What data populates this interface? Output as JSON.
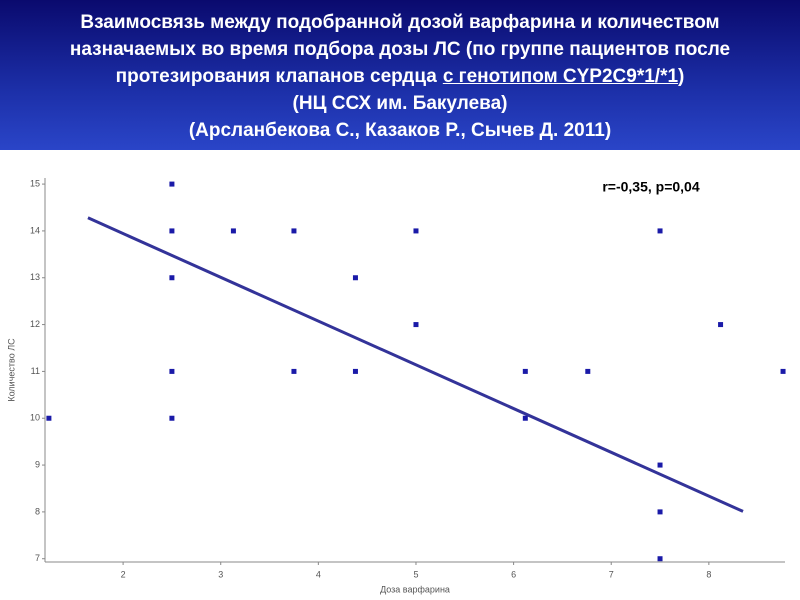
{
  "chart_data": {
    "type": "scatter",
    "title_lines": [
      "Взаимосвязь между подобранной дозой варфарина и количеством",
      "назначаемых во время подбора дозы ЛС (по группе пациентов после",
      "(НЦ ССХ им. Бакулева)",
      "(Арсланбекова С., Казаков Р., Сычев Д. 2011)"
    ],
    "title_line3": {
      "before": "протезирования клапанов сердца",
      "underlined": "с генотипом CYP2C9*1/*1",
      "after": ")"
    },
    "annotation": "r=-0,35, p=0,04",
    "x_label": "Доза варфарина",
    "y_label": "Количество ЛС",
    "xlim": [
      1.2,
      8.78
    ],
    "ylim": [
      6.93,
      15.13
    ],
    "xticks": [
      2,
      3,
      4,
      5,
      6,
      7,
      8
    ],
    "yticks": [
      7,
      8,
      9,
      10,
      11,
      12,
      13,
      14,
      15
    ],
    "series": [
      {
        "color": "#1a1aa8",
        "x": [
          1.24,
          2.5,
          2.5,
          2.5,
          2.5,
          2.5,
          3.13,
          3.75,
          3.75,
          4.38,
          4.38,
          5,
          5,
          6.12,
          6.12,
          6.76,
          7.5,
          7.5,
          7.5,
          7.5,
          8.12,
          8.76
        ],
        "values": [
          10,
          15,
          14,
          13,
          11,
          10,
          14,
          14,
          11,
          13,
          11,
          14,
          12,
          11,
          10,
          11,
          14,
          9,
          8,
          7,
          12,
          11
        ]
      }
    ],
    "fit_line": {
      "color": "#333399",
      "x": [
        1.64,
        8.35
      ],
      "values": [
        14.28,
        8.01
      ]
    }
  }
}
